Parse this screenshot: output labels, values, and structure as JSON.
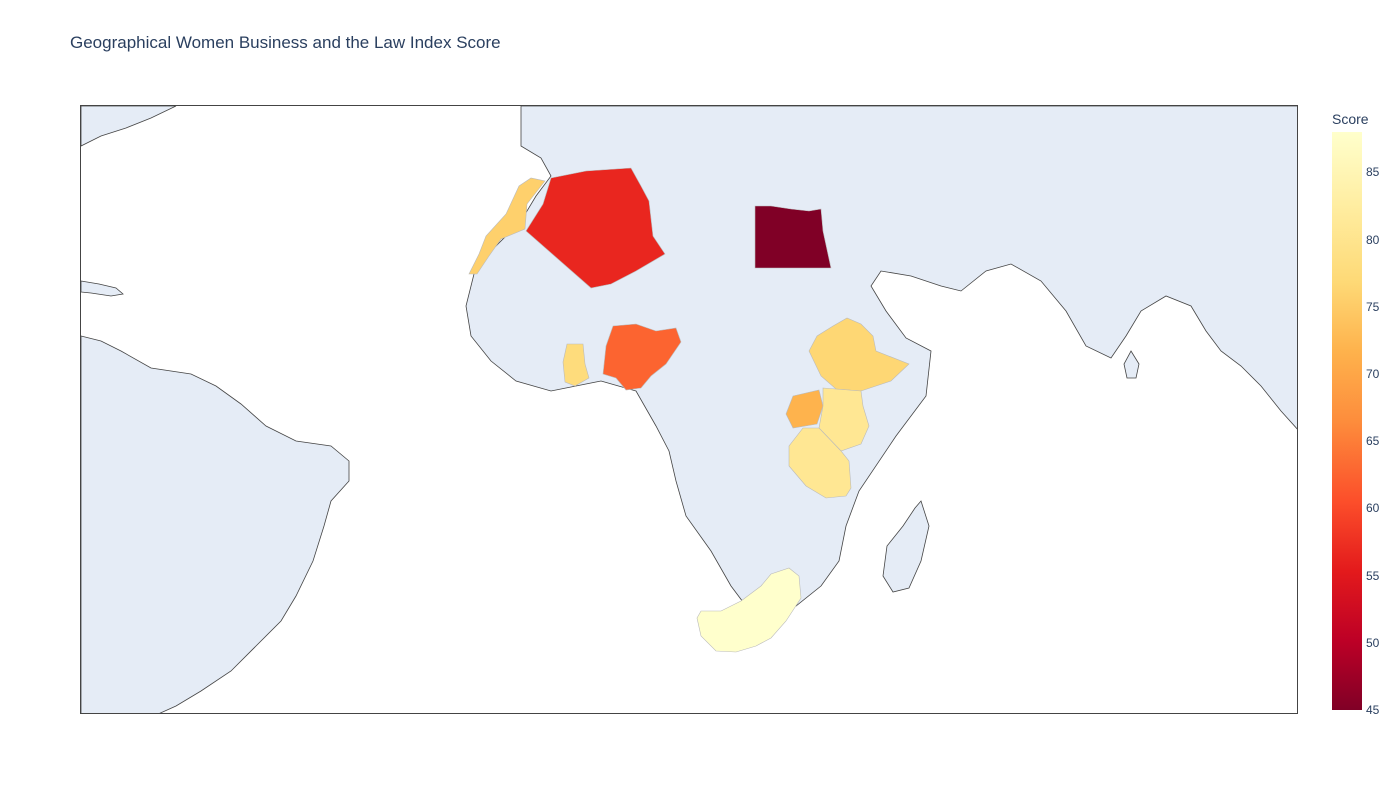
{
  "chart_data": {
    "type": "choropleth",
    "title": "Geographical Women Business and the Law Index Score",
    "colorbar": {
      "title": "Score",
      "range": [
        45,
        88
      ],
      "ticks": [
        "45",
        "50",
        "55",
        "60",
        "65",
        "70",
        "75",
        "80",
        "85"
      ],
      "colorscale": [
        "#800026",
        "#bd0026",
        "#e31a1c",
        "#fc4e2a",
        "#fd8d3c",
        "#feb24c",
        "#fed976",
        "#ffeda0",
        "#ffffcc"
      ]
    },
    "countries": [
      {
        "id": "egypt",
        "value": 45
      },
      {
        "id": "algeria",
        "value": 57
      },
      {
        "id": "nigeria",
        "value": 63
      },
      {
        "id": "uganda",
        "value": 72
      },
      {
        "id": "morocco",
        "value": 76
      },
      {
        "id": "ghana",
        "value": 78
      },
      {
        "id": "ethiopia",
        "value": 77
      },
      {
        "id": "kenya",
        "value": 81
      },
      {
        "id": "tanzania",
        "value": 81
      },
      {
        "id": "south-africa",
        "value": 88
      }
    ]
  }
}
